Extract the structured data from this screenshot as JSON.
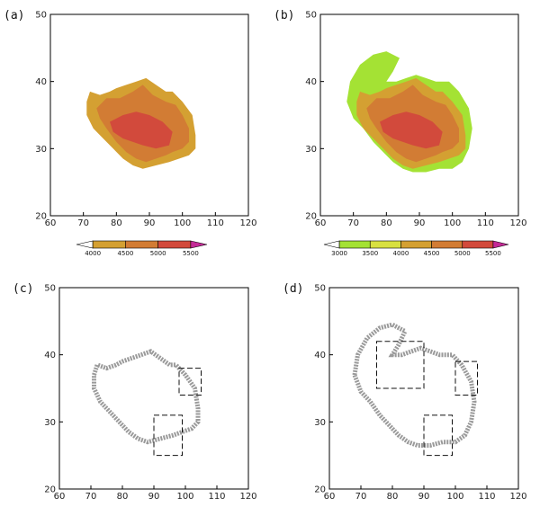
{
  "chart_data": [
    {
      "panel": "(a)",
      "type": "heatmap",
      "xlim": [
        60,
        120
      ],
      "ylim": [
        20,
        50
      ],
      "xticks": [
        60,
        70,
        80,
        90,
        100,
        110,
        120
      ],
      "yticks": [
        20,
        30,
        40,
        50
      ],
      "colorbar": {
        "levels": [
          "4000",
          "4500",
          "5000",
          "5500"
        ],
        "colors": [
          "#d4a032",
          "#d27c34",
          "#d24a3c"
        ],
        "over_color": "#c42a96"
      }
    },
    {
      "panel": "(b)",
      "type": "heatmap",
      "xlim": [
        60,
        120
      ],
      "ylim": [
        20,
        50
      ],
      "xticks": [
        60,
        70,
        80,
        90,
        100,
        110,
        120
      ],
      "yticks": [
        20,
        30,
        40,
        50
      ],
      "colorbar": {
        "levels": [
          "3000",
          "3500",
          "4000",
          "4500",
          "5000",
          "5500"
        ],
        "colors": [
          "#a4e234",
          "#d8e040",
          "#d4a032",
          "#d27c34",
          "#d24a3c"
        ],
        "over_color": "#c42a96"
      }
    },
    {
      "panel": "(c)",
      "type": "line",
      "xlim": [
        60,
        120
      ],
      "ylim": [
        20,
        50
      ],
      "xticks": [
        60,
        70,
        80,
        90,
        100,
        110,
        120
      ],
      "yticks": [
        20,
        30,
        40,
        50
      ],
      "boxes": [
        {
          "x": [
            98,
            105
          ],
          "y": [
            34,
            38
          ]
        },
        {
          "x": [
            90,
            99
          ],
          "y": [
            25,
            31
          ]
        }
      ]
    },
    {
      "panel": "(d)",
      "type": "line",
      "xlim": [
        60,
        120
      ],
      "ylim": [
        20,
        50
      ],
      "xticks": [
        60,
        70,
        80,
        90,
        100,
        110,
        120
      ],
      "yticks": [
        20,
        30,
        40,
        50
      ],
      "boxes": [
        {
          "x": [
            75,
            90
          ],
          "y": [
            35,
            42
          ]
        },
        {
          "x": [
            100,
            107
          ],
          "y": [
            34,
            39
          ]
        },
        {
          "x": [
            90,
            99
          ],
          "y": [
            25,
            31
          ]
        }
      ]
    }
  ]
}
